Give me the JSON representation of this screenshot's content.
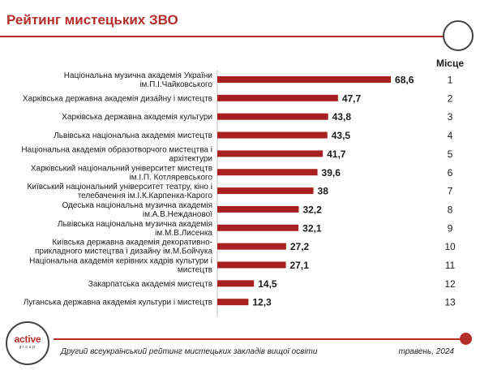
{
  "header": {
    "title": "Рейтинг мистецьких ЗВО"
  },
  "rank_column_header": "Місце",
  "footer": {
    "caption": "Другий всеукраїнський рейтинг мистецьких закладів вищої освіти",
    "date": "травень, 2024"
  },
  "logo": {
    "main": "active",
    "sub": "group"
  },
  "colors": {
    "accent": "#b42e2a",
    "bar": "#a8201f"
  },
  "chart_data": {
    "type": "bar",
    "orientation": "horizontal",
    "title": "Рейтинг мистецьких ЗВО",
    "xlim": [
      0,
      75
    ],
    "categories": [
      [
        "Національна музична академія України",
        "ім.П.І.Чайковського"
      ],
      [
        "Харківська державна академія дизайну і мистецтв"
      ],
      [
        "Харківська державна академія культури"
      ],
      [
        "Львівська національна академія мистецтв"
      ],
      [
        "Національна академія образотворчого мистецтва і",
        "архітектури"
      ],
      [
        "Харківський національний університет мистецтв",
        "ім.І.П. Котляревського"
      ],
      [
        "Київський національний університет театру, кіно і",
        "телебачення ім.І.К.Карпенка-Карого"
      ],
      [
        "Одеська національна музична академія",
        "ім.А.В.Нежданової"
      ],
      [
        "Львівська національна музична академія",
        "ім.М.В.Лисенка"
      ],
      [
        "Київська державна академія декоративно-",
        "прикладного мистецтва і дизайну ім.М.Бойчука"
      ],
      [
        "Національна академія керівних кадрів культури і",
        "мистецтв"
      ],
      [
        "Закарпатська академія мистецтв"
      ],
      [
        "Луганська державна академія культури і мистецтв"
      ]
    ],
    "values": [
      68.6,
      47.7,
      43.8,
      43.5,
      41.7,
      39.6,
      38,
      32.2,
      32.1,
      27.2,
      27.1,
      14.5,
      12.3
    ],
    "value_labels": [
      "68,6",
      "47,7",
      "43,8",
      "43,5",
      "41,7",
      "39,6",
      "38",
      "32,2",
      "32,1",
      "27,2",
      "27,1",
      "14,5",
      "12,3"
    ],
    "ranks": [
      "1",
      "2",
      "3",
      "4",
      "5",
      "6",
      "7",
      "8",
      "9",
      "10",
      "11",
      "12",
      "13"
    ]
  }
}
